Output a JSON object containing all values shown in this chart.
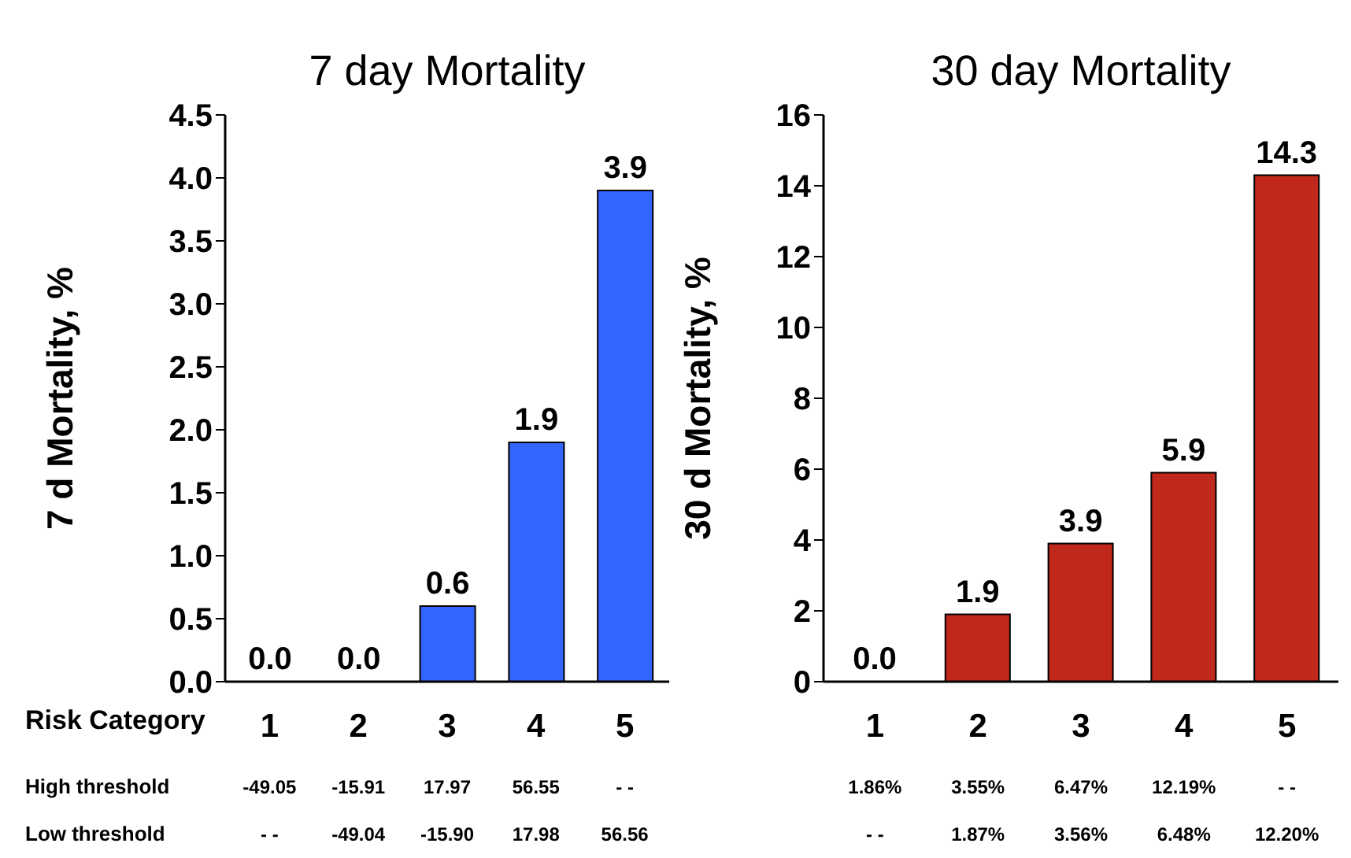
{
  "chart_data": [
    {
      "type": "bar",
      "title": "7 day Mortality",
      "ylabel": "7 d Mortality, %",
      "xlabel": "Risk Category",
      "categories": [
        "1",
        "2",
        "3",
        "4",
        "5"
      ],
      "values": [
        0.0,
        0.0,
        0.6,
        1.9,
        3.9
      ],
      "value_labels": [
        "0.0",
        "0.0",
        "0.6",
        "1.9",
        "3.9"
      ],
      "color": "#3366ff",
      "ylim": [
        0,
        4.5
      ],
      "yticks": [
        {
          "value": 0,
          "label": "0.0"
        },
        {
          "value": 0.5,
          "label": "0.5"
        },
        {
          "value": 1,
          "label": "1.0"
        },
        {
          "value": 1.5,
          "label": "1.5"
        },
        {
          "value": 2,
          "label": "2.0"
        },
        {
          "value": 2.5,
          "label": "2.5"
        },
        {
          "value": 3,
          "label": "3.0"
        },
        {
          "value": 3.5,
          "label": "3.5"
        },
        {
          "value": 4,
          "label": "4.0"
        },
        {
          "value": 4.5,
          "label": "4.5"
        }
      ],
      "grid": false,
      "legend": false,
      "annotations": [
        "High threshold",
        "-49.05",
        "-15.91",
        "17.97",
        "56.55",
        "- -",
        "Low threshold",
        "- -",
        "-49.04",
        "-15.90",
        "17.98",
        "56.56"
      ]
    },
    {
      "type": "bar",
      "title": "30 day Mortality",
      "ylabel": "30 d Mortality, %",
      "categories": [
        "1",
        "2",
        "3",
        "4",
        "5"
      ],
      "values": [
        0.0,
        1.9,
        3.9,
        5.9,
        14.3
      ],
      "value_labels": [
        "0.0",
        "1.9",
        "3.9",
        "5.9",
        "14.3"
      ],
      "color": "#c0281c",
      "ylim": [
        0,
        16
      ],
      "yticks": [
        0,
        2,
        4,
        6,
        8,
        10,
        12,
        14,
        16
      ],
      "grid": false,
      "legend": false,
      "annotations": [
        "1.86%",
        "3.55%",
        "6.47%",
        "12.19%",
        "- -",
        "- -",
        "1.87%",
        "3.56%",
        "6.48%",
        "12.20%"
      ]
    }
  ]
}
